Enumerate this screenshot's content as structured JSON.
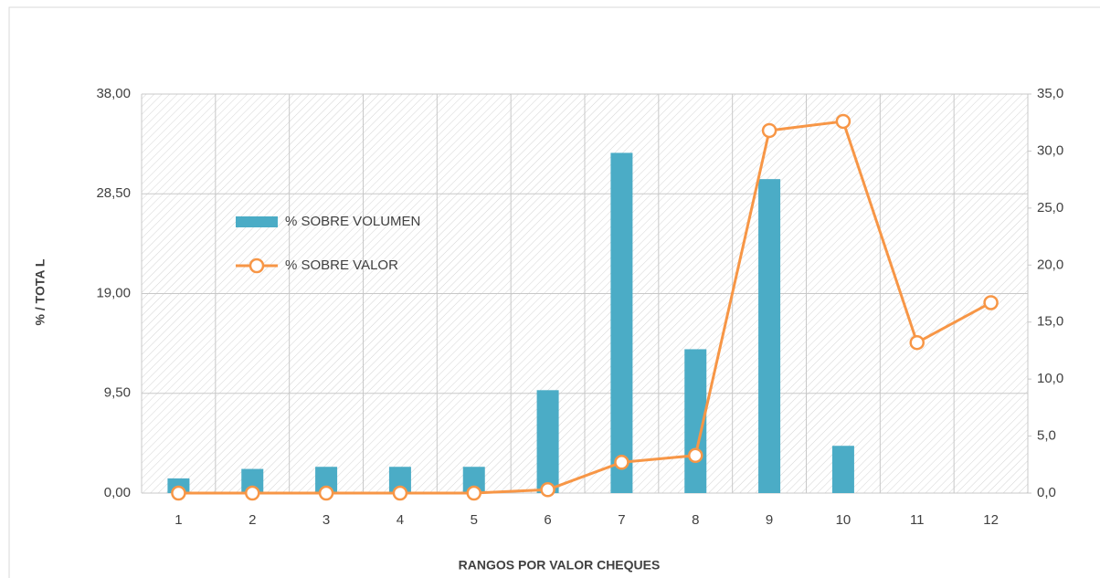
{
  "chart_data": {
    "type": "bar",
    "x_label": "RANGOS POR VALOR CHEQUES",
    "y_label": "% /  TOTA L",
    "categories": [
      "1",
      "2",
      "3",
      "4",
      "5",
      "6",
      "7",
      "8",
      "9",
      "10",
      "11",
      "12"
    ],
    "series": [
      {
        "name": "% SOBRE VOLUMEN",
        "type": "bar",
        "color": "#4bacc6",
        "values": [
          1.4,
          2.3,
          2.5,
          2.5,
          2.5,
          9.8,
          32.4,
          13.7,
          29.9,
          4.5,
          0,
          0
        ]
      },
      {
        "name": "% SOBRE VALOR",
        "type": "line",
        "axis": "y2",
        "color": "#f79646",
        "values": [
          0,
          0,
          0,
          0,
          0,
          0.3,
          2.7,
          3.3,
          31.8,
          32.6,
          13.2,
          16.7
        ]
      }
    ],
    "ylim": [
      0,
      38
    ],
    "yticks": [
      {
        "value": 0,
        "label": "0,00"
      },
      {
        "value": 9.5,
        "label": "9,50"
      },
      {
        "value": 19,
        "label": "19,00"
      },
      {
        "value": 28.5,
        "label": "28,50"
      },
      {
        "value": 38,
        "label": "38,00"
      }
    ],
    "y2lim": [
      0,
      35
    ],
    "y2ticks": [
      {
        "value": 0,
        "label": "0,0"
      },
      {
        "value": 5,
        "label": "5,0"
      },
      {
        "value": 10,
        "label": "10,0"
      },
      {
        "value": 15,
        "label": "15,0"
      },
      {
        "value": 20,
        "label": "20,0"
      },
      {
        "value": 25,
        "label": "25,0"
      },
      {
        "value": 30,
        "label": "30,0"
      },
      {
        "value": 35,
        "label": "35,0"
      }
    ],
    "grid": true,
    "legend": "upper left"
  }
}
